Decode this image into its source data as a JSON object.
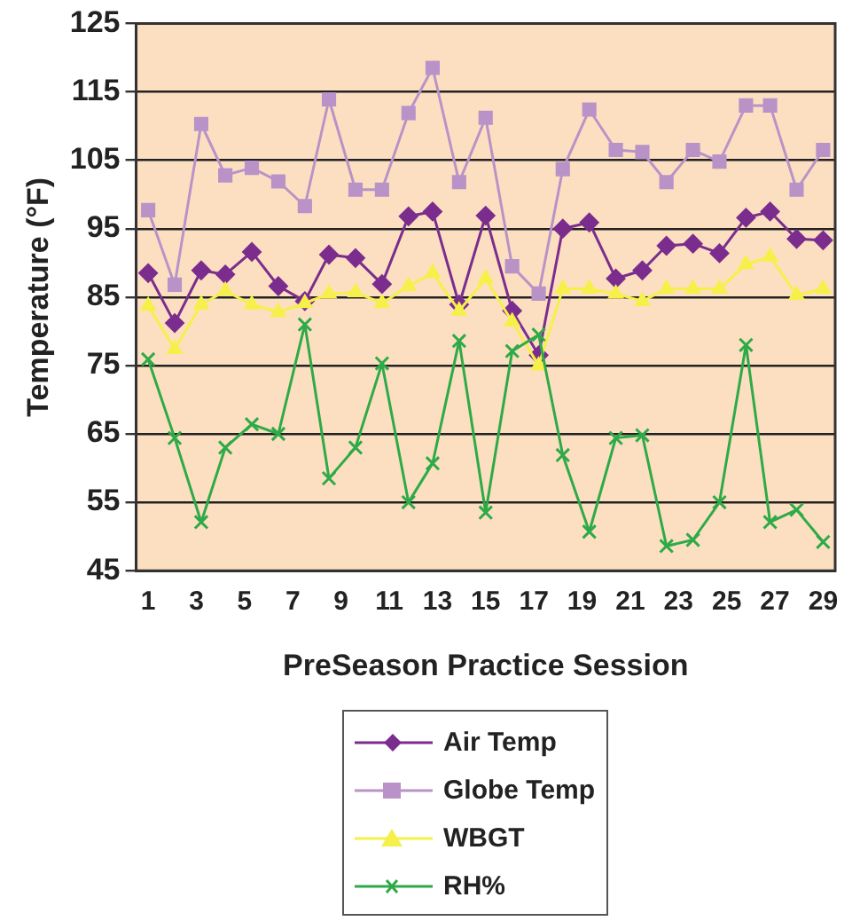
{
  "chart_data": {
    "type": "line",
    "xlabel": "PreSeason Practice Session",
    "ylabel": "Temperature (°F)",
    "x": [
      1,
      2.1,
      3.2,
      4.2,
      5.3,
      6.4,
      7.5,
      8.5,
      9.6,
      10.7,
      11.8,
      12.8,
      13.9,
      15,
      16.1,
      17.2,
      18.2,
      19.3,
      20.4,
      21.5,
      22.5,
      23.6,
      24.7,
      25.8,
      26.8,
      27.9,
      29
    ],
    "xlim": [
      0.5,
      29.5
    ],
    "xticks": [
      1,
      3,
      5,
      7,
      9,
      11,
      13,
      15,
      17,
      19,
      21,
      23,
      25,
      27,
      29
    ],
    "ylim": [
      45,
      125
    ],
    "yticks": [
      45,
      55,
      65,
      75,
      85,
      95,
      105,
      115,
      125
    ],
    "grid": "y",
    "legend": "bottom",
    "series": [
      {
        "name": "Air Temp",
        "color": "#7b2d8e",
        "marker": "diamond",
        "values": [
          88.5,
          81.2,
          88.9,
          88.3,
          91.6,
          86.6,
          84.4,
          91.2,
          90.7,
          86.9,
          96.8,
          97.5,
          83.9,
          96.9,
          83,
          76.5,
          95,
          95.9,
          87.7,
          88.9,
          92.5,
          92.8,
          91.4,
          96.6,
          97.5,
          93.5,
          93.3
        ]
      },
      {
        "name": "Globe Temp",
        "color": "#b993c8",
        "marker": "square",
        "values": [
          97.7,
          86.8,
          110.3,
          102.8,
          103.9,
          101.9,
          98.3,
          113.9,
          100.7,
          100.7,
          111.9,
          118.5,
          101.8,
          111.2,
          89.5,
          85.5,
          103.7,
          112.4,
          106.5,
          106.2,
          101.8,
          106.5,
          104.8,
          113,
          113,
          100.7,
          106.5
        ]
      },
      {
        "name": "WBGT",
        "color": "#f5f04a",
        "marker": "triangle",
        "values": [
          83.7,
          77.4,
          83.9,
          85.9,
          83.9,
          82.8,
          84.1,
          85.5,
          85.7,
          84.1,
          86.6,
          88.5,
          83,
          87.7,
          81.4,
          75,
          86.2,
          86.2,
          85.5,
          84.4,
          86.2,
          86.2,
          86.2,
          89.8,
          90.9,
          85.3,
          86.2
        ]
      },
      {
        "name": "RH%",
        "color": "#2eaa48",
        "marker": "cross",
        "values": [
          75.9,
          64.4,
          52.1,
          63,
          66.4,
          65,
          81,
          58.5,
          63,
          75.3,
          55,
          60.7,
          78.6,
          53.5,
          77.1,
          79.5,
          61.9,
          50.7,
          64.4,
          64.8,
          48.6,
          49.5,
          55,
          78,
          52.1,
          53.9,
          49.2
        ]
      }
    ]
  }
}
